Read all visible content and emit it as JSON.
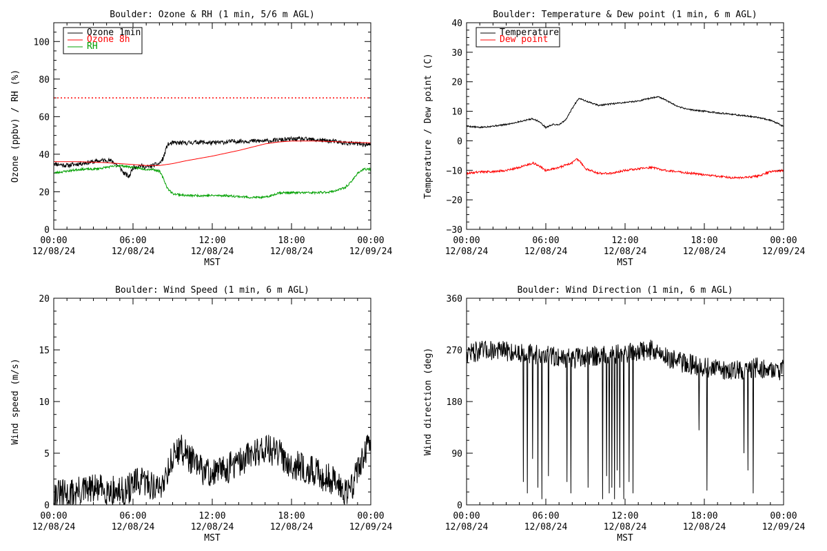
{
  "colors": {
    "black": "#000000",
    "red": "#ff0000",
    "green": "#00a000",
    "background": "#ffffff"
  },
  "chart_data": [
    {
      "id": "ozone",
      "type": "line",
      "title": "Boulder: Ozone & RH (1 min, 5/6 m AGL)",
      "ylabel": "Ozone (ppbv) / RH (%)",
      "xlabel": "MST",
      "xlim": [
        0,
        24
      ],
      "ylim": [
        0,
        110
      ],
      "yticks": [
        0,
        20,
        40,
        60,
        80,
        100
      ],
      "ytick_labels": [
        "0",
        "20",
        "40",
        "60",
        "80",
        "100"
      ],
      "xtick_times": [
        "00:00",
        "06:00",
        "12:00",
        "18:00",
        "00:00"
      ],
      "xtick_dates": [
        "12/08/24",
        "12/08/24",
        "12/08/24",
        "12/08/24",
        "12/09/24"
      ],
      "legend": {
        "placement": "top-left",
        "entries": [
          {
            "label": "Ozone 1min",
            "color": "#000000"
          },
          {
            "label": "Ozone 8h",
            "color": "#ff0000"
          },
          {
            "label": "RH",
            "color": "#00a000"
          }
        ]
      },
      "reference_line": {
        "y": 70,
        "color": "#ff0000",
        "style": "dotted"
      },
      "series": [
        {
          "name": "Ozone 1min",
          "color": "#000000",
          "noise": 1.2,
          "seed": 11,
          "x": [
            0,
            1,
            2,
            3,
            4,
            4.5,
            5,
            5.3,
            5.7,
            6,
            6.5,
            7,
            7.5,
            8,
            8.3,
            8.6,
            9,
            10,
            11,
            12,
            13,
            14,
            15,
            16,
            17,
            18,
            19,
            20,
            21,
            22,
            23,
            24
          ],
          "y": [
            35,
            34,
            35,
            36,
            37,
            36,
            33,
            30,
            28,
            33,
            34,
            33,
            34,
            35,
            38,
            45,
            46,
            46,
            46.5,
            46,
            46.5,
            47,
            47,
            47,
            47.5,
            48,
            48,
            47.5,
            47,
            46,
            45.5,
            45
          ]
        },
        {
          "name": "Ozone 8h",
          "color": "#ff0000",
          "noise": 0,
          "seed": 1,
          "x": [
            0,
            2,
            4,
            6,
            7,
            8,
            9,
            10,
            12,
            14,
            16,
            17,
            18,
            20,
            22,
            24
          ],
          "y": [
            36,
            36,
            35.5,
            34.5,
            34,
            34,
            35,
            36.5,
            39,
            42,
            45.5,
            46.5,
            47,
            47,
            46.5,
            46
          ]
        },
        {
          "name": "RH",
          "color": "#00a000",
          "noise": 0.6,
          "seed": 23,
          "x": [
            0,
            1,
            2,
            3,
            4,
            5,
            6,
            7,
            7.5,
            8,
            8.3,
            8.6,
            9,
            10,
            11,
            12,
            13,
            14,
            15,
            16,
            16.5,
            17,
            18,
            19,
            20,
            21,
            22,
            22.5,
            23,
            23.5,
            24
          ],
          "y": [
            30,
            31,
            32,
            32,
            33,
            34,
            33,
            32,
            32,
            31,
            27,
            22,
            19,
            18,
            18,
            18,
            18,
            17.5,
            17,
            17,
            18,
            19.5,
            19.5,
            19.5,
            19.5,
            20,
            22,
            25,
            30,
            32,
            32
          ]
        }
      ]
    },
    {
      "id": "temperature",
      "type": "line",
      "title": "Boulder: Temperature & Dew point (1 min, 6 m AGL)",
      "ylabel": "Temperature / Dew point (C)",
      "xlabel": "MST",
      "xlim": [
        0,
        24
      ],
      "ylim": [
        -30,
        40
      ],
      "yticks": [
        -30,
        -20,
        -10,
        0,
        10,
        20,
        30,
        40
      ],
      "ytick_labels": [
        "−30",
        "−20",
        "−10",
        "0",
        "10",
        "20",
        "30",
        "40"
      ],
      "xtick_times": [
        "00:00",
        "06:00",
        "12:00",
        "18:00",
        "00:00"
      ],
      "xtick_dates": [
        "12/08/24",
        "12/08/24",
        "12/08/24",
        "12/08/24",
        "12/09/24"
      ],
      "legend": {
        "placement": "top-left",
        "entries": [
          {
            "label": "Temperature",
            "color": "#000000"
          },
          {
            "label": "Dew point",
            "color": "#ff0000"
          }
        ]
      },
      "series": [
        {
          "name": "Temperature",
          "color": "#000000",
          "noise": 0.25,
          "seed": 5,
          "x": [
            0,
            1,
            2,
            3,
            4,
            5,
            5.5,
            6,
            6.5,
            7,
            7.5,
            8,
            8.5,
            9,
            10,
            11,
            12,
            13,
            14,
            14.5,
            15,
            16,
            17,
            18,
            19,
            20,
            21,
            22,
            23,
            24
          ],
          "y": [
            5,
            4.5,
            5,
            5.5,
            6.5,
            7.5,
            6.5,
            4.5,
            5.5,
            5.5,
            7,
            11,
            14.5,
            13.5,
            12,
            12.5,
            13,
            13.5,
            14.5,
            15,
            14,
            11.5,
            10.5,
            10,
            9.5,
            9,
            8.5,
            8,
            7,
            5
          ]
        },
        {
          "name": "Dew point",
          "color": "#ff0000",
          "noise": 0.35,
          "seed": 9,
          "x": [
            0,
            1,
            2,
            3,
            4,
            5,
            5.5,
            6,
            7,
            8,
            8.3,
            8.6,
            9,
            10,
            11,
            12,
            13,
            14,
            15,
            16,
            17,
            18,
            19,
            20,
            21,
            22,
            23,
            24
          ],
          "y": [
            -11,
            -10.5,
            -10.5,
            -10,
            -9,
            -7.5,
            -8.5,
            -10,
            -9,
            -7.5,
            -6,
            -7,
            -9.5,
            -11,
            -11,
            -10,
            -9.5,
            -9,
            -10,
            -10.5,
            -11,
            -11.5,
            -12,
            -12.5,
            -12.5,
            -12,
            -10.5,
            -10
          ]
        }
      ]
    },
    {
      "id": "wind-speed",
      "type": "line",
      "title": "Boulder: Wind Speed (1 min, 6 m AGL)",
      "ylabel": "Wind speed (m/s)",
      "xlabel": "MST",
      "xlim": [
        0,
        24
      ],
      "ylim": [
        0,
        20
      ],
      "yticks": [
        0,
        5,
        10,
        15,
        20
      ],
      "ytick_labels": [
        "0",
        "5",
        "10",
        "15",
        "20"
      ],
      "xtick_times": [
        "00:00",
        "06:00",
        "12:00",
        "18:00",
        "00:00"
      ],
      "xtick_dates": [
        "12/08/24",
        "12/08/24",
        "12/08/24",
        "12/08/24",
        "12/09/24"
      ],
      "series": [
        {
          "name": "Wind speed",
          "color": "#000000",
          "noise": 1.5,
          "seed": 31,
          "min": 0,
          "x": [
            0,
            1,
            2,
            3,
            4,
            5,
            5.5,
            6,
            7,
            8,
            8.5,
            9,
            9.5,
            10,
            11,
            12,
            13,
            14,
            15,
            16,
            17,
            18,
            19,
            20,
            21,
            22,
            22.5,
            23,
            24
          ],
          "y": [
            1,
            1,
            1.3,
            1.5,
            1.5,
            1.2,
            1.3,
            2,
            2.2,
            1.5,
            3,
            4.5,
            5.5,
            5,
            3.5,
            3,
            3.5,
            4,
            5,
            5.5,
            5,
            4,
            3.5,
            3,
            2.5,
            1.5,
            1.5,
            3.5,
            6
          ]
        }
      ]
    },
    {
      "id": "wind-direction",
      "type": "line",
      "title": "Boulder: Wind Direction (1 min, 6 m AGL)",
      "ylabel": "Wind direction (deg)",
      "xlabel": "MST",
      "xlim": [
        0,
        24
      ],
      "ylim": [
        0,
        360
      ],
      "yticks": [
        0,
        90,
        180,
        270,
        360
      ],
      "ytick_labels": [
        "0",
        "90",
        "180",
        "270",
        "360"
      ],
      "xtick_times": [
        "00:00",
        "06:00",
        "12:00",
        "18:00",
        "00:00"
      ],
      "xtick_dates": [
        "12/08/24",
        "12/08/24",
        "12/08/24",
        "12/08/24",
        "12/09/24"
      ],
      "series": [
        {
          "name": "Wind direction",
          "color": "#000000",
          "noise": 18,
          "seed": 47,
          "min": 0,
          "max": 360,
          "x": [
            0,
            2,
            4,
            6,
            8,
            10,
            12,
            14,
            15,
            16,
            17,
            18,
            19,
            20,
            21,
            22,
            23,
            24
          ],
          "y": [
            265,
            270,
            265,
            260,
            255,
            260,
            265,
            270,
            260,
            250,
            245,
            240,
            235,
            235,
            235,
            240,
            235,
            235
          ],
          "dropouts": [
            [
              4.3,
              40
            ],
            [
              4.6,
              20
            ],
            [
              5.0,
              80
            ],
            [
              5.4,
              30
            ],
            [
              5.7,
              10
            ],
            [
              6.2,
              50
            ],
            [
              7.6,
              40
            ],
            [
              7.9,
              20
            ],
            [
              9.2,
              30
            ],
            [
              10.3,
              10
            ],
            [
              10.6,
              50
            ],
            [
              10.8,
              20
            ],
            [
              11.0,
              30
            ],
            [
              11.2,
              10
            ],
            [
              11.4,
              60
            ],
            [
              11.6,
              30
            ],
            [
              11.9,
              10
            ],
            [
              12.3,
              40
            ],
            [
              12.6,
              20
            ],
            [
              17.6,
              130
            ],
            [
              18.2,
              25
            ],
            [
              21.0,
              90
            ],
            [
              21.3,
              60
            ],
            [
              21.7,
              20
            ]
          ]
        }
      ]
    }
  ]
}
